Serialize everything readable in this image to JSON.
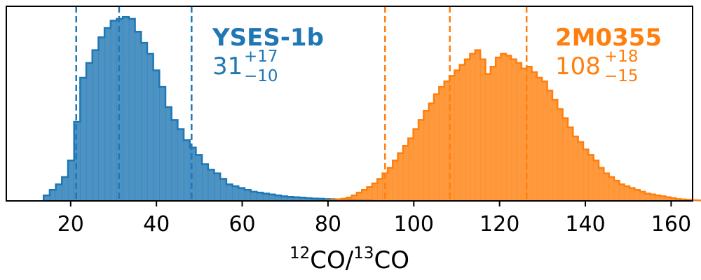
{
  "chart_data": {
    "type": "histogram",
    "title": "",
    "xlabel": {
      "base1": "CO/",
      "sup1": "12",
      "sup2": "13",
      "base2": "CO"
    },
    "ylabel": "",
    "xlim": [
      5,
      165
    ],
    "ylim": [
      0,
      1.0
    ],
    "x_ticks": [
      20,
      40,
      60,
      80,
      100,
      120,
      140,
      160
    ],
    "y_ticks": [],
    "grid": false,
    "series": [
      {
        "name": "YSES-1b",
        "color": "#1f77b4",
        "median": "31",
        "upper": "+17",
        "lower": "−10",
        "quantiles": [
          21.3,
          31.3,
          48.2
        ],
        "bin_start": 13.7,
        "bin_width": 1.42,
        "heights": [
          0.03,
          0.06,
          0.09,
          0.13,
          0.22,
          0.43,
          0.67,
          0.75,
          0.82,
          0.89,
          0.94,
          0.98,
          0.99,
          1.0,
          0.99,
          0.92,
          0.86,
          0.8,
          0.71,
          0.62,
          0.51,
          0.44,
          0.39,
          0.33,
          0.29,
          0.25,
          0.2,
          0.17,
          0.15,
          0.12,
          0.09,
          0.08,
          0.07,
          0.06,
          0.05,
          0.045,
          0.04,
          0.035,
          0.03,
          0.025,
          0.022,
          0.02,
          0.018,
          0.015,
          0.013,
          0.012,
          0.01,
          0.009,
          0.008,
          0.007,
          0.006,
          0.005,
          0.004,
          0.003
        ]
      },
      {
        "name": "2M0355",
        "color": "#ff7f0e",
        "median": "108",
        "upper": "+18",
        "lower": "−15",
        "quantiles": [
          93.3,
          108.4,
          126.3
        ],
        "bin_start": 79.5,
        "bin_width": 1.2,
        "heights": [
          0.003,
          0.005,
          0.008,
          0.012,
          0.018,
          0.03,
          0.045,
          0.06,
          0.075,
          0.095,
          0.12,
          0.15,
          0.18,
          0.22,
          0.26,
          0.3,
          0.34,
          0.39,
          0.44,
          0.49,
          0.53,
          0.58,
          0.62,
          0.65,
          0.68,
          0.71,
          0.74,
          0.77,
          0.8,
          0.82,
          0.77,
          0.69,
          0.73,
          0.78,
          0.8,
          0.79,
          0.77,
          0.75,
          0.72,
          0.73,
          0.7,
          0.67,
          0.65,
          0.6,
          0.55,
          0.5,
          0.45,
          0.4,
          0.35,
          0.32,
          0.28,
          0.25,
          0.22,
          0.18,
          0.15,
          0.13,
          0.11,
          0.09,
          0.08,
          0.07,
          0.06,
          0.05,
          0.04,
          0.035,
          0.03,
          0.025,
          0.02,
          0.015,
          0.01,
          0.008,
          0.006,
          0.004,
          0.003,
          0.002,
          0.001
        ]
      }
    ]
  }
}
